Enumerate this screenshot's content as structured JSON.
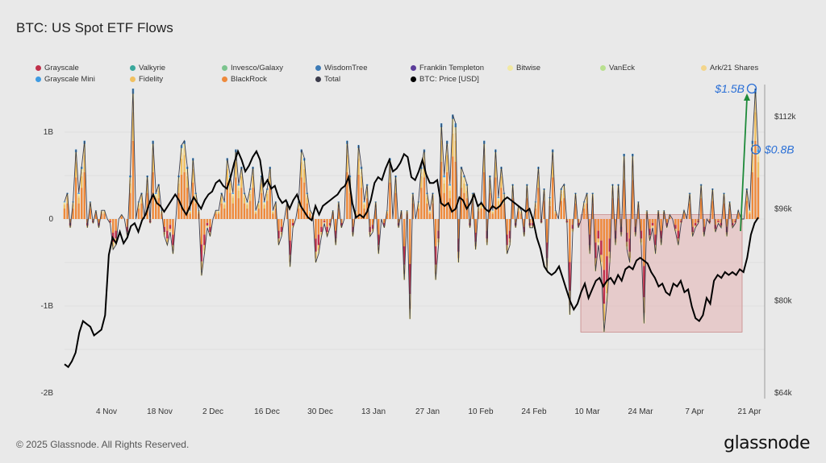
{
  "page": {
    "title": "BTC: US Spot ETF Flows",
    "footer": "© 2025 Glassnode. All Rights Reserved.",
    "brand": "glassnode"
  },
  "legend": [
    {
      "label": "Grayscale",
      "color": "#c0304a"
    },
    {
      "label": "Valkyrie",
      "color": "#3aa89c"
    },
    {
      "label": "Invesco/Galaxy",
      "color": "#7cc48e"
    },
    {
      "label": "WisdomTree",
      "color": "#3d7bb6"
    },
    {
      "label": "Franklin Templeton",
      "color": "#5b3c9a"
    },
    {
      "label": "Bitwise",
      "color": "#f2e9a2"
    },
    {
      "label": "VanEck",
      "color": "#b9e08f"
    },
    {
      "label": "Ark/21 Shares",
      "color": "#f3d58b"
    },
    {
      "label": "Grayscale Mini",
      "color": "#3f9be2"
    },
    {
      "label": "Fidelity",
      "color": "#f0c060"
    },
    {
      "label": "BlackRock",
      "color": "#ee8a3c"
    },
    {
      "label": "Total",
      "color": "#3b3b4a"
    },
    {
      "label": "BTC: Price [USD]",
      "color": "#000000"
    }
  ],
  "chart_data": {
    "type": "bar",
    "title": "BTC: US Spot ETF Flows",
    "x_tick_labels": [
      "4 Nov",
      "18 Nov",
      "2 Dec",
      "16 Dec",
      "30 Dec",
      "13 Jan",
      "27 Jan",
      "10 Feb",
      "24 Feb",
      "10 Mar",
      "24 Mar",
      "7 Apr",
      "21 Apr"
    ],
    "y_left": {
      "ticks": [
        "1B",
        "0",
        "-1B",
        "-2B"
      ],
      "ylim": [
        -2,
        1.9
      ],
      "unit": "B"
    },
    "y_right": {
      "ticks": [
        "$112k",
        "$96k",
        "$80k",
        "$64k"
      ],
      "ylim": [
        64000,
        118000
      ]
    },
    "annotations": [
      {
        "text": "$1.5B",
        "value": 1.5
      },
      {
        "text": "$0.8B",
        "value": 0.8
      }
    ],
    "highlight_region": {
      "from": "9 Mar",
      "to": "20 Apr",
      "ylim": [
        -1.3,
        0.05
      ]
    },
    "flows_total_b": [
      0.2,
      0.3,
      -0.1,
      0.2,
      0.8,
      0.3,
      0.6,
      0.9,
      -0.1,
      0.2,
      -0.05,
      0.1,
      -0.1,
      0.1,
      0.1,
      0.0,
      -0.05,
      -0.35,
      -0.3,
      0.0,
      0.05,
      0.0,
      -0.2,
      0.5,
      1.5,
      0.0,
      0.2,
      0.3,
      0.0,
      0.5,
      -0.05,
      0.9,
      0.3,
      0.4,
      0.1,
      -0.2,
      -0.3,
      -0.15,
      -0.4,
      0.0,
      0.5,
      0.85,
      0.9,
      0.6,
      0.1,
      0.7,
      0.3,
      0.1,
      -0.65,
      -0.4,
      -0.1,
      -0.2,
      0.0,
      0.1,
      0.1,
      0.3,
      0.2,
      0.7,
      0.5,
      0.3,
      0.8,
      0.4,
      0.6,
      0.3,
      0.2,
      0.35,
      0.6,
      0.1,
      0.2,
      0.5,
      0.2,
      0.35,
      0.6,
      0.1,
      0.2,
      -0.3,
      -0.2,
      0.0,
      0.2,
      -0.55,
      -0.1,
      0.0,
      0.2,
      0.8,
      0.7,
      0.3,
      0.1,
      0.05,
      -0.5,
      -0.4,
      -0.2,
      -0.05,
      -0.2,
      -0.1,
      0.1,
      -0.3,
      0.2,
      -0.1,
      0.0,
      0.9,
      0.5,
      -0.2,
      0.1,
      0.85,
      0.6,
      0.2,
      0.4,
      -0.2,
      -0.15,
      0.2,
      -0.4,
      0.0,
      -0.1,
      0.1,
      0.7,
      0.0,
      0.5,
      -0.1,
      0.1,
      -0.7,
      0.1,
      -1.15,
      0.3,
      0.0,
      0.2,
      0.6,
      0.8,
      0.3,
      0.1,
      0.3,
      -0.7,
      -0.3,
      1.1,
      0.5,
      0.9,
      0.4,
      1.2,
      1.1,
      -0.5,
      0.6,
      0.5,
      0.4,
      -0.1,
      0.3,
      -0.35,
      0.15,
      0.2,
      0.9,
      -0.3,
      0.5,
      0.1,
      0.8,
      0.25,
      0.6,
      0.3,
      -0.4,
      -0.3,
      0.4,
      -0.1,
      0.15,
      0.1,
      -0.2,
      0.4,
      -0.1,
      -0.1,
      0.2,
      0.6,
      -0.05,
      0.35,
      -0.6,
      0.25,
      0.8,
      0.1,
      0.0,
      0.35,
      0.4,
      -0.05,
      -1.1,
      -0.15,
      0.3,
      -0.1,
      0.0,
      0.2,
      0.3,
      -0.4,
      0.3,
      -0.6,
      -0.3,
      -0.55,
      -1.3,
      -0.95,
      -0.5,
      0.4,
      -0.3,
      0.4,
      -0.2,
      0.75,
      -0.35,
      -0.5,
      0.75,
      -0.2,
      0.2,
      -0.3,
      -1.2,
      0.1,
      -0.25,
      -0.1,
      -0.4,
      0.1,
      -0.3,
      0.1,
      -0.1,
      0.05,
      0.0,
      -0.15,
      -0.3,
      -0.05,
      0.1,
      0.0,
      0.3,
      -0.2,
      -0.1,
      -0.05,
      0.4,
      -0.2,
      0.0,
      -0.05,
      0.35,
      -0.15,
      -0.05,
      -0.1,
      0.3,
      -0.2,
      0.2,
      -0.1,
      -0.05,
      0.1,
      0.0,
      0.0,
      0.35,
      0.1,
      0.9,
      1.5,
      0.8
    ],
    "btc_price_usd": [
      69000,
      68500,
      69500,
      71000,
      74500,
      76500,
      76000,
      75500,
      74000,
      74500,
      75000,
      77500,
      88000,
      91000,
      90000,
      92000,
      90000,
      91000,
      93000,
      93500,
      92000,
      94000,
      95000,
      97000,
      98500,
      97000,
      96500,
      95500,
      96500,
      97500,
      98500,
      97500,
      96000,
      95000,
      96500,
      98000,
      97000,
      96000,
      97500,
      98500,
      99000,
      100500,
      101000,
      100000,
      99500,
      101500,
      104000,
      106000,
      104500,
      102500,
      103500,
      105000,
      106000,
      104500,
      100000,
      101000,
      99500,
      100000,
      98000,
      97000,
      97500,
      96000,
      97500,
      98500,
      96500,
      95500,
      94500,
      94000,
      96500,
      95000,
      96500,
      97000,
      97500,
      98000,
      98500,
      99500,
      100000,
      101500,
      97000,
      94500,
      95000,
      94500,
      95500,
      97500,
      100500,
      101500,
      101000,
      103000,
      104500,
      102500,
      103000,
      104000,
      105500,
      105000,
      101500,
      101000,
      102500,
      104500,
      102000,
      100500,
      100500,
      101000,
      97000,
      96500,
      97000,
      95500,
      96000,
      98000,
      97500,
      96000,
      97000,
      98500,
      96500,
      97000,
      96000,
      95500,
      96500,
      96000,
      96500,
      97500,
      98000,
      97500,
      97000,
      96500,
      96000,
      95500,
      96000,
      94000,
      91000,
      89000,
      86000,
      85000,
      84500,
      85000,
      86000,
      84000,
      82000,
      80000,
      78500,
      79500,
      81500,
      83000,
      80500,
      82000,
      83500,
      84000,
      82500,
      83500,
      84000,
      83000,
      84500,
      83500,
      85500,
      86000,
      85500,
      87000,
      87500,
      87000,
      86500,
      85000,
      84000,
      82500,
      83000,
      81500,
      81000,
      83000,
      82500,
      83500,
      81500,
      82000,
      79000,
      77000,
      76500,
      77500,
      80500,
      79500,
      83500,
      84500,
      84000,
      85000,
      84500,
      85000,
      84500,
      85500,
      85000,
      87500,
      91500,
      93500,
      94500
    ]
  }
}
